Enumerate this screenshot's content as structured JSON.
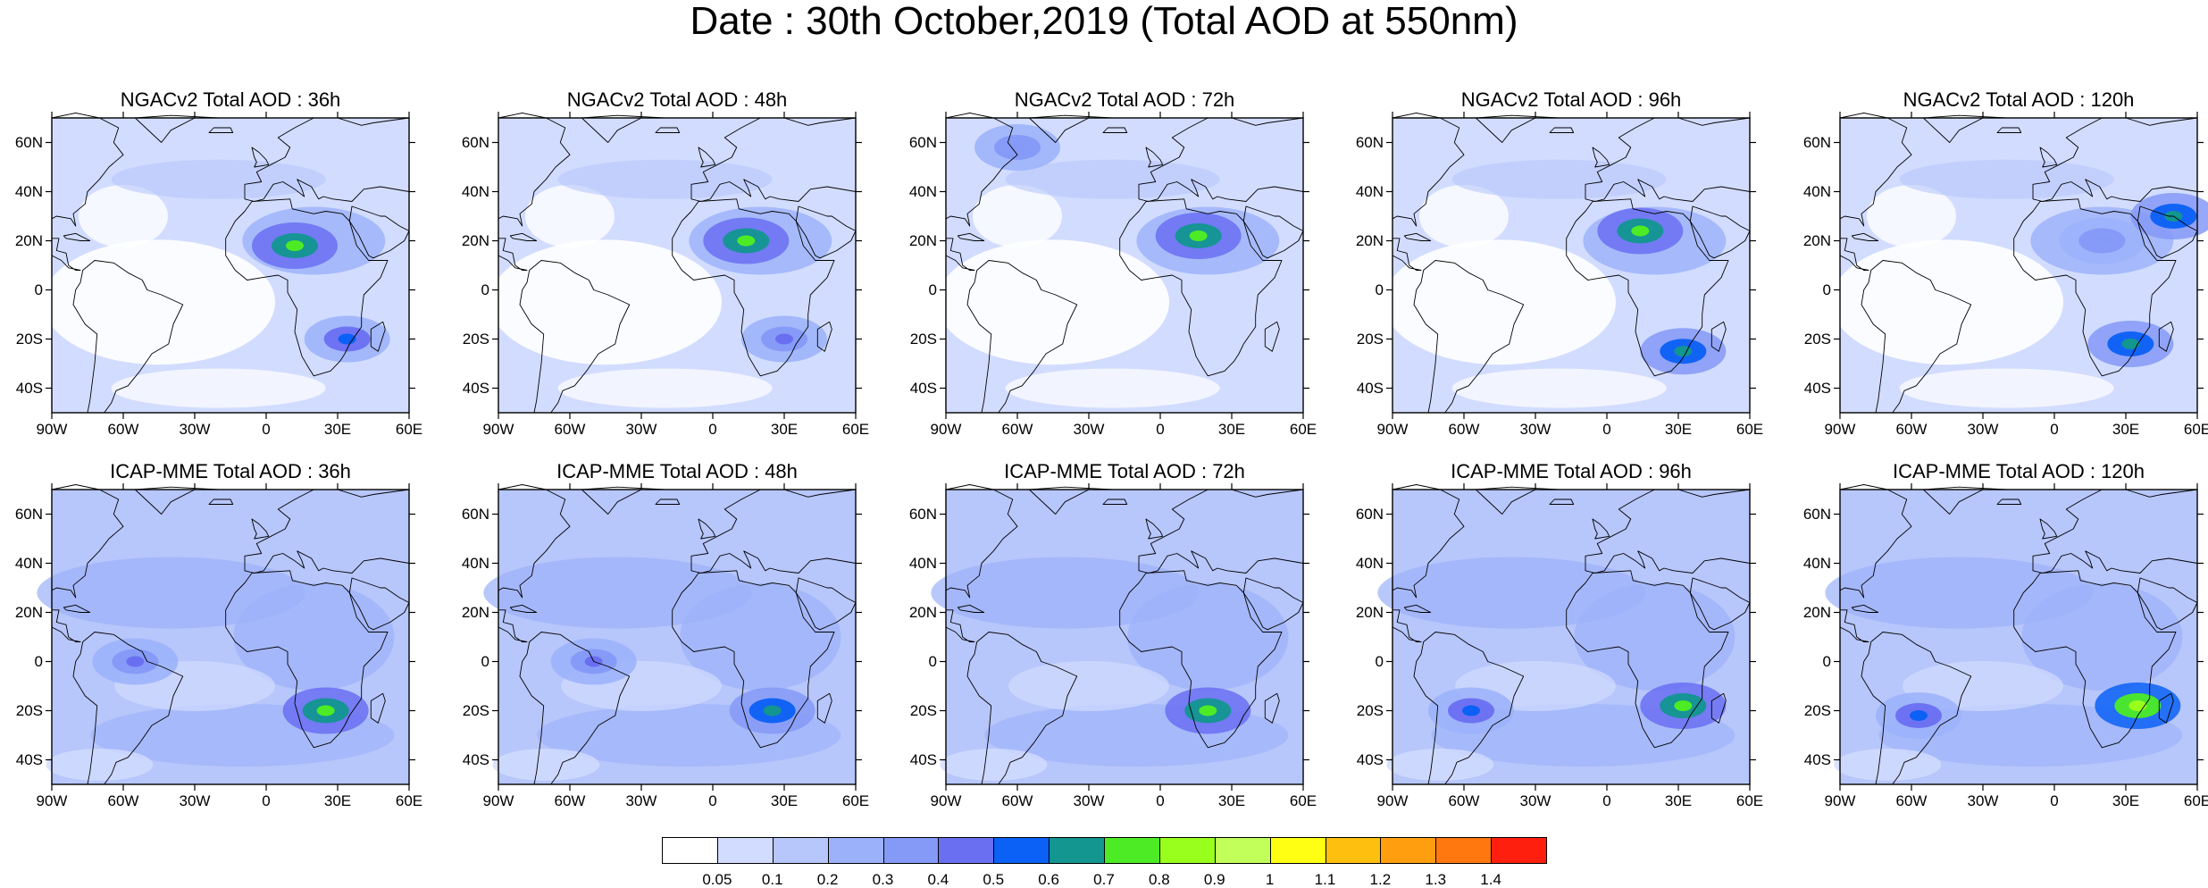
{
  "title": "Date : 30th October,2019 (Total AOD at 550nm)",
  "lat_labels": [
    "60N",
    "40N",
    "20N",
    "0",
    "20S",
    "40S"
  ],
  "lat_values": [
    60,
    40,
    20,
    0,
    -20,
    -40
  ],
  "lon_labels": [
    "90W",
    "60W",
    "30W",
    "0",
    "30E",
    "60E"
  ],
  "lon_values": [
    -90,
    -60,
    -30,
    0,
    30,
    60
  ],
  "map_extent": {
    "lon": [
      -90,
      60
    ],
    "lat": [
      -50,
      70
    ]
  },
  "panels": [
    {
      "id": "ngac-36",
      "title": "NGACv2 Total AOD : 36h",
      "model": "NGACv2",
      "lead": "36h",
      "hotspots": [
        {
          "lon": 12,
          "lat": 18,
          "level": 8
        },
        {
          "lon": 34,
          "lat": -20,
          "level": 6
        }
      ]
    },
    {
      "id": "ngac-48",
      "title": "NGACv2 Total AOD : 48h",
      "model": "NGACv2",
      "lead": "48h",
      "hotspots": [
        {
          "lon": 14,
          "lat": 20,
          "level": 8
        },
        {
          "lon": 30,
          "lat": -20,
          "level": 5
        }
      ]
    },
    {
      "id": "ngac-72",
      "title": "NGACv2 Total AOD : 72h",
      "model": "NGACv2",
      "lead": "72h",
      "hotspots": [
        {
          "lon": 16,
          "lat": 22,
          "level": 8
        },
        {
          "lon": -60,
          "lat": 58,
          "level": 4
        }
      ]
    },
    {
      "id": "ngac-96",
      "title": "NGACv2 Total AOD : 96h",
      "model": "NGACv2",
      "lead": "96h",
      "hotspots": [
        {
          "lon": 14,
          "lat": 24,
          "level": 8
        },
        {
          "lon": 32,
          "lat": -25,
          "level": 7
        }
      ]
    },
    {
      "id": "ngac-120",
      "title": "NGACv2 Total AOD : 120h",
      "model": "NGACv2",
      "lead": "120h",
      "hotspots": [
        {
          "lon": 20,
          "lat": 20,
          "level": 4
        },
        {
          "lon": 32,
          "lat": -22,
          "level": 7
        },
        {
          "lon": 50,
          "lat": 30,
          "level": 7
        }
      ]
    },
    {
      "id": "icap-36",
      "title": "ICAP-MME Total AOD : 36h",
      "model": "ICAP-MME",
      "lead": "36h",
      "hotspots": [
        {
          "lon": 25,
          "lat": -20,
          "level": 8
        },
        {
          "lon": -55,
          "lat": 0,
          "level": 5
        }
      ]
    },
    {
      "id": "icap-48",
      "title": "ICAP-MME Total AOD : 48h",
      "model": "ICAP-MME",
      "lead": "48h",
      "hotspots": [
        {
          "lon": 25,
          "lat": -20,
          "level": 7
        },
        {
          "lon": -50,
          "lat": 0,
          "level": 5
        }
      ]
    },
    {
      "id": "icap-72",
      "title": "ICAP-MME Total AOD : 72h",
      "model": "ICAP-MME",
      "lead": "72h",
      "hotspots": [
        {
          "lon": 20,
          "lat": -20,
          "level": 8
        }
      ]
    },
    {
      "id": "icap-96",
      "title": "ICAP-MME Total AOD : 96h",
      "model": "ICAP-MME",
      "lead": "96h",
      "hotspots": [
        {
          "lon": 32,
          "lat": -18,
          "level": 8
        },
        {
          "lon": -57,
          "lat": -20,
          "level": 6
        }
      ]
    },
    {
      "id": "icap-120",
      "title": "ICAP-MME Total AOD : 120h",
      "model": "ICAP-MME",
      "lead": "120h",
      "hotspots": [
        {
          "lon": 35,
          "lat": -18,
          "level": 9
        },
        {
          "lon": -57,
          "lat": -22,
          "level": 6
        }
      ]
    }
  ],
  "colorbar": {
    "colors": [
      "#ffffff",
      "#d2dcff",
      "#b7c6fb",
      "#9bb1fa",
      "#8599f7",
      "#6a6ff2",
      "#0b60f5",
      "#12968f",
      "#4deb25",
      "#99ff1c",
      "#c3ff5a",
      "#ffff14",
      "#ffbf0e",
      "#ff9e0e",
      "#ff770e",
      "#ff1f0e"
    ],
    "labels": [
      "0.05",
      "0.1",
      "0.2",
      "0.3",
      "0.4",
      "0.5",
      "0.6",
      "0.7",
      "0.8",
      "0.9",
      "1",
      "1.1",
      "1.2",
      "1.3",
      "1.4"
    ]
  }
}
